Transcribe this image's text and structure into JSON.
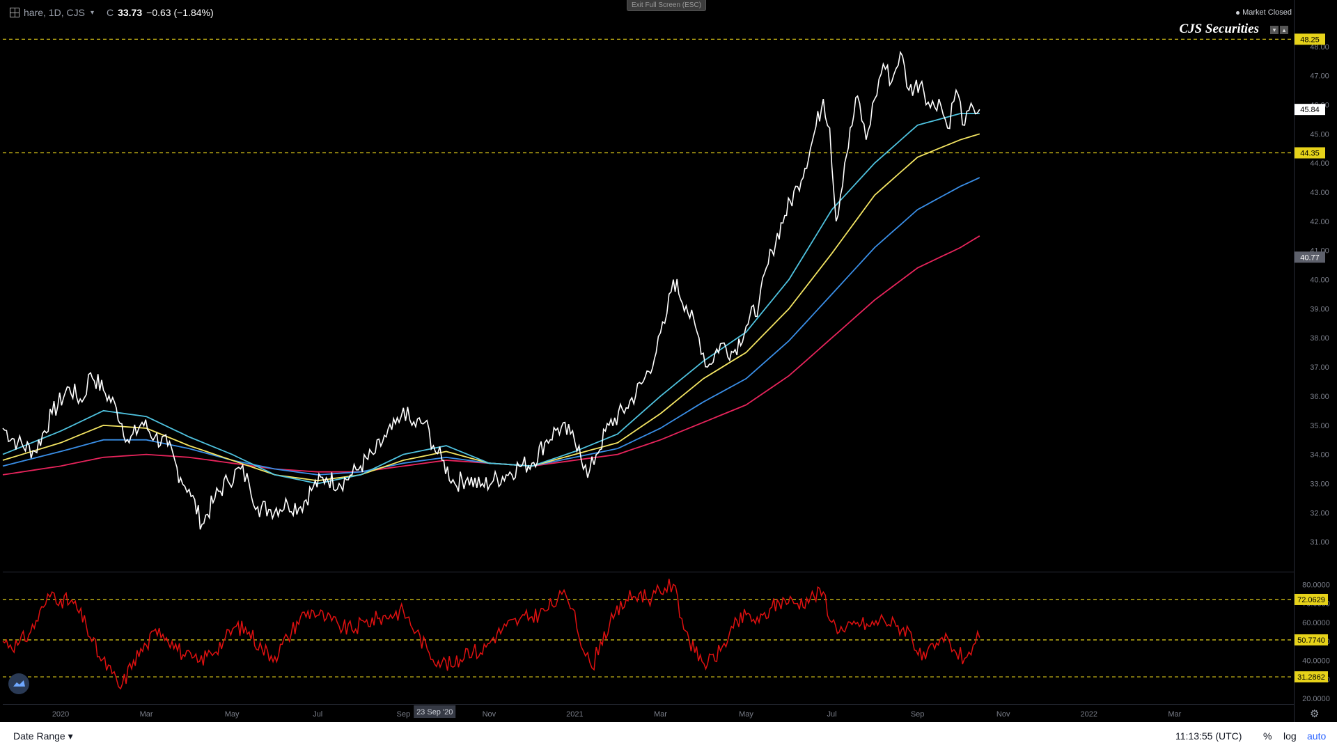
{
  "header": {
    "symbol": "hare, 1D, CJS",
    "price_prefix": "C",
    "close": "33.73",
    "change": "−0.63 (−1.84%)",
    "exit_button": "Exit Full Screen (ESC)",
    "market_status": "Market Closed",
    "brand": "CJS Securities"
  },
  "footer": {
    "date_range": "Date Range",
    "time": "11:13:55 (UTC)",
    "percent": "%",
    "log": "log",
    "auto": "auto"
  },
  "colors": {
    "background": "#000000",
    "price": "#ffffff",
    "ma_fast": "#4fc3e0",
    "ma_mid": "#f5e663",
    "ma_slow": "#3a8fe8",
    "ma_long": "#e8245c",
    "rsi": "#e01010",
    "level_line": "#e6d21a"
  },
  "chart_data": [
    {
      "type": "line",
      "x_ticks": [
        "2020",
        "Mar",
        "May",
        "Jul",
        "Sep",
        "Nov",
        "2021",
        "Mar",
        "May",
        "Jul",
        "Sep",
        "Nov",
        "2022",
        "Mar"
      ],
      "x_tick_months": [
        0,
        2,
        4,
        6,
        8,
        10,
        12,
        14,
        16,
        18,
        20,
        22,
        24,
        26
      ],
      "x_range_months": [
        -1.35,
        28.75
      ],
      "crosshair_label": "23 Sep '20",
      "crosshair_month": 8.73,
      "ylim": [
        30.0,
        49.5
      ],
      "y_ticks": [
        31,
        32,
        33,
        34,
        35,
        36,
        37,
        38,
        39,
        40,
        41,
        42,
        43,
        44,
        45,
        46,
        47,
        48
      ],
      "y_tick_labels": [
        "31.00",
        "32.00",
        "33.00",
        "34.00",
        "35.00",
        "36.00",
        "37.00",
        "38.00",
        "39.00",
        "40.00",
        "41.00",
        "42.00",
        "43.00",
        "44.00",
        "45.00",
        "46.00",
        "47.00",
        "48.00"
      ],
      "levels": [
        {
          "value": 48.25,
          "label": "48.25"
        },
        {
          "value": 44.35,
          "label": "44.35"
        }
      ],
      "price_badges": [
        {
          "value": 45.84,
          "label": "45.84",
          "style": "white"
        },
        {
          "value": 40.77,
          "label": "40.77",
          "style": "grey"
        }
      ],
      "price_keypoints": [
        [
          -1.35,
          34.9
        ],
        [
          -1.0,
          34.4
        ],
        [
          -0.6,
          34.1
        ],
        [
          -0.2,
          35.4
        ],
        [
          0.2,
          36.3
        ],
        [
          0.5,
          35.8
        ],
        [
          0.7,
          36.8
        ],
        [
          1.0,
          36.2
        ],
        [
          1.3,
          35.6
        ],
        [
          1.6,
          34.4
        ],
        [
          1.9,
          35.1
        ],
        [
          2.2,
          34.6
        ],
        [
          2.5,
          34.3
        ],
        [
          2.8,
          33.2
        ],
        [
          3.0,
          32.8
        ],
        [
          3.3,
          31.6
        ],
        [
          3.6,
          32.5
        ],
        [
          3.9,
          33.1
        ],
        [
          4.2,
          33.5
        ],
        [
          4.4,
          33.0
        ],
        [
          4.6,
          32.2
        ],
        [
          4.9,
          32.1
        ],
        [
          5.3,
          32.3
        ],
        [
          5.6,
          32.2
        ],
        [
          5.9,
          32.9
        ],
        [
          6.2,
          33.2
        ],
        [
          6.5,
          33.0
        ],
        [
          6.8,
          33.3
        ],
        [
          7.0,
          33.6
        ],
        [
          7.3,
          34.0
        ],
        [
          7.6,
          34.6
        ],
        [
          7.9,
          35.1
        ],
        [
          8.0,
          35.6
        ],
        [
          8.2,
          35.0
        ],
        [
          8.5,
          35.1
        ],
        [
          8.7,
          34.3
        ],
        [
          8.9,
          33.8
        ],
        [
          9.2,
          33.0
        ],
        [
          9.5,
          33.2
        ],
        [
          9.8,
          32.9
        ],
        [
          10.1,
          33.1
        ],
        [
          10.4,
          33.3
        ],
        [
          10.7,
          33.6
        ],
        [
          11.0,
          33.7
        ],
        [
          11.3,
          34.4
        ],
        [
          11.6,
          34.9
        ],
        [
          11.9,
          34.7
        ],
        [
          12.1,
          34.3
        ],
        [
          12.3,
          33.2
        ],
        [
          12.5,
          34.0
        ],
        [
          12.8,
          35.0
        ],
        [
          13.2,
          35.6
        ],
        [
          13.6,
          36.5
        ],
        [
          13.9,
          37.5
        ],
        [
          14.1,
          38.5
        ],
        [
          14.3,
          40.0
        ],
        [
          14.6,
          39.1
        ],
        [
          14.9,
          38.0
        ],
        [
          15.1,
          37.0
        ],
        [
          15.4,
          37.8
        ],
        [
          15.7,
          37.5
        ],
        [
          16.0,
          38.4
        ],
        [
          16.3,
          39.2
        ],
        [
          16.6,
          41.0
        ],
        [
          16.9,
          42.2
        ],
        [
          17.2,
          43.2
        ],
        [
          17.5,
          44.5
        ],
        [
          17.8,
          46.2
        ],
        [
          17.95,
          45.2
        ],
        [
          18.1,
          42.0
        ],
        [
          18.3,
          44.0
        ],
        [
          18.6,
          46.3
        ],
        [
          18.8,
          44.8
        ],
        [
          19.0,
          46.2
        ],
        [
          19.2,
          47.4
        ],
        [
          19.4,
          46.8
        ],
        [
          19.6,
          47.8
        ],
        [
          19.8,
          46.5
        ],
        [
          20.1,
          46.8
        ],
        [
          20.3,
          45.9
        ],
        [
          20.5,
          46.2
        ],
        [
          20.7,
          45.2
        ],
        [
          20.9,
          46.5
        ],
        [
          21.1,
          45.3
        ],
        [
          21.3,
          45.9
        ],
        [
          21.45,
          45.84
        ]
      ],
      "ma_fast_keypoints": [
        [
          -1.35,
          34.0
        ],
        [
          0.0,
          34.8
        ],
        [
          1.0,
          35.5
        ],
        [
          2.0,
          35.3
        ],
        [
          3.0,
          34.6
        ],
        [
          4.0,
          34.0
        ],
        [
          5.0,
          33.3
        ],
        [
          6.0,
          33.0
        ],
        [
          7.0,
          33.3
        ],
        [
          8.0,
          34.0
        ],
        [
          9.0,
          34.3
        ],
        [
          10.0,
          33.7
        ],
        [
          11.0,
          33.6
        ],
        [
          12.0,
          34.1
        ],
        [
          13.0,
          34.7
        ],
        [
          14.0,
          36.0
        ],
        [
          15.0,
          37.2
        ],
        [
          16.0,
          38.2
        ],
        [
          17.0,
          40.0
        ],
        [
          18.0,
          42.4
        ],
        [
          19.0,
          44.0
        ],
        [
          20.0,
          45.3
        ],
        [
          21.0,
          45.7
        ],
        [
          21.45,
          45.7
        ]
      ],
      "ma_mid_keypoints": [
        [
          -1.35,
          33.8
        ],
        [
          0.0,
          34.4
        ],
        [
          1.0,
          35.0
        ],
        [
          2.0,
          34.9
        ],
        [
          3.0,
          34.3
        ],
        [
          4.0,
          33.8
        ],
        [
          5.0,
          33.3
        ],
        [
          6.0,
          33.1
        ],
        [
          7.0,
          33.3
        ],
        [
          8.0,
          33.8
        ],
        [
          9.0,
          34.1
        ],
        [
          10.0,
          33.7
        ],
        [
          11.0,
          33.6
        ],
        [
          12.0,
          34.0
        ],
        [
          13.0,
          34.4
        ],
        [
          14.0,
          35.4
        ],
        [
          15.0,
          36.6
        ],
        [
          16.0,
          37.5
        ],
        [
          17.0,
          39.0
        ],
        [
          18.0,
          40.9
        ],
        [
          19.0,
          42.9
        ],
        [
          20.0,
          44.2
        ],
        [
          21.0,
          44.8
        ],
        [
          21.45,
          45.0
        ]
      ],
      "ma_slow_keypoints": [
        [
          -1.35,
          33.6
        ],
        [
          0.0,
          34.1
        ],
        [
          1.0,
          34.5
        ],
        [
          2.0,
          34.5
        ],
        [
          3.0,
          34.2
        ],
        [
          4.0,
          33.8
        ],
        [
          5.0,
          33.5
        ],
        [
          6.0,
          33.3
        ],
        [
          7.0,
          33.4
        ],
        [
          8.0,
          33.7
        ],
        [
          9.0,
          33.9
        ],
        [
          10.0,
          33.7
        ],
        [
          11.0,
          33.6
        ],
        [
          12.0,
          33.9
        ],
        [
          13.0,
          34.2
        ],
        [
          14.0,
          34.9
        ],
        [
          15.0,
          35.8
        ],
        [
          16.0,
          36.6
        ],
        [
          17.0,
          37.9
        ],
        [
          18.0,
          39.5
        ],
        [
          19.0,
          41.1
        ],
        [
          20.0,
          42.4
        ],
        [
          21.0,
          43.2
        ],
        [
          21.45,
          43.5
        ]
      ],
      "ma_long_keypoints": [
        [
          -1.35,
          33.3
        ],
        [
          0.0,
          33.6
        ],
        [
          1.0,
          33.9
        ],
        [
          2.0,
          34.0
        ],
        [
          3.0,
          33.9
        ],
        [
          4.0,
          33.7
        ],
        [
          5.0,
          33.5
        ],
        [
          6.0,
          33.4
        ],
        [
          7.0,
          33.4
        ],
        [
          8.0,
          33.6
        ],
        [
          9.0,
          33.8
        ],
        [
          10.0,
          33.7
        ],
        [
          11.0,
          33.6
        ],
        [
          12.0,
          33.8
        ],
        [
          13.0,
          34.0
        ],
        [
          14.0,
          34.5
        ],
        [
          15.0,
          35.1
        ],
        [
          16.0,
          35.7
        ],
        [
          17.0,
          36.7
        ],
        [
          18.0,
          38.0
        ],
        [
          19.0,
          39.3
        ],
        [
          20.0,
          40.4
        ],
        [
          21.0,
          41.1
        ],
        [
          21.45,
          41.5
        ]
      ]
    },
    {
      "type": "line",
      "series_type": "oscillator",
      "ylim": [
        17,
        86
      ],
      "y_ticks": [
        20,
        30,
        40,
        50,
        60,
        70,
        80
      ],
      "y_tick_labels": [
        "20.0000",
        "30.0000",
        "40.0000",
        "50.0000",
        "60.0000",
        "70.0000",
        "80.0000"
      ],
      "levels": [
        {
          "value": 72.0629,
          "label": "72.0629"
        },
        {
          "value": 50.774,
          "label": "50.7740"
        },
        {
          "value": 31.2862,
          "label": "31.2862"
        }
      ],
      "keypoints": [
        [
          -1.35,
          50
        ],
        [
          -1.0,
          48
        ],
        [
          -0.7,
          55
        ],
        [
          -0.4,
          68
        ],
        [
          -0.2,
          76
        ],
        [
          0.0,
          72
        ],
        [
          0.3,
          70
        ],
        [
          0.6,
          58
        ],
        [
          0.9,
          42
        ],
        [
          1.2,
          33
        ],
        [
          1.4,
          25
        ],
        [
          1.7,
          40
        ],
        [
          2.0,
          48
        ],
        [
          2.3,
          57
        ],
        [
          2.6,
          50
        ],
        [
          2.9,
          42
        ],
        [
          3.2,
          39
        ],
        [
          3.5,
          44
        ],
        [
          3.8,
          50
        ],
        [
          4.1,
          58
        ],
        [
          4.4,
          55
        ],
        [
          4.7,
          46
        ],
        [
          5.0,
          42
        ],
        [
          5.3,
          52
        ],
        [
          5.6,
          63
        ],
        [
          5.9,
          66
        ],
        [
          6.2,
          62
        ],
        [
          6.5,
          58
        ],
        [
          6.8,
          56
        ],
        [
          7.1,
          60
        ],
        [
          7.4,
          62
        ],
        [
          7.7,
          64
        ],
        [
          8.0,
          66
        ],
        [
          8.3,
          55
        ],
        [
          8.6,
          44
        ],
        [
          8.9,
          39
        ],
        [
          9.2,
          37
        ],
        [
          9.5,
          46
        ],
        [
          9.8,
          44
        ],
        [
          10.1,
          52
        ],
        [
          10.4,
          58
        ],
        [
          10.7,
          61
        ],
        [
          11.0,
          63
        ],
        [
          11.3,
          66
        ],
        [
          11.6,
          72
        ],
        [
          11.8,
          74
        ],
        [
          12.0,
          66
        ],
        [
          12.2,
          45
        ],
        [
          12.4,
          36
        ],
        [
          12.6,
          50
        ],
        [
          12.9,
          62
        ],
        [
          13.2,
          72
        ],
        [
          13.5,
          75
        ],
        [
          13.8,
          73
        ],
        [
          14.1,
          78
        ],
        [
          14.3,
          80
        ],
        [
          14.5,
          62
        ],
        [
          14.8,
          44
        ],
        [
          15.1,
          38
        ],
        [
          15.4,
          45
        ],
        [
          15.7,
          57
        ],
        [
          16.0,
          64
        ],
        [
          16.3,
          60
        ],
        [
          16.6,
          68
        ],
        [
          16.9,
          72
        ],
        [
          17.2,
          70
        ],
        [
          17.5,
          73
        ],
        [
          17.8,
          76
        ],
        [
          18.0,
          60
        ],
        [
          18.3,
          55
        ],
        [
          18.6,
          60
        ],
        [
          18.9,
          58
        ],
        [
          19.2,
          62
        ],
        [
          19.5,
          58
        ],
        [
          19.8,
          56
        ],
        [
          20.1,
          40
        ],
        [
          20.4,
          46
        ],
        [
          20.7,
          52
        ],
        [
          20.9,
          44
        ],
        [
          21.1,
          41
        ],
        [
          21.3,
          48
        ],
        [
          21.45,
          52
        ]
      ]
    }
  ]
}
